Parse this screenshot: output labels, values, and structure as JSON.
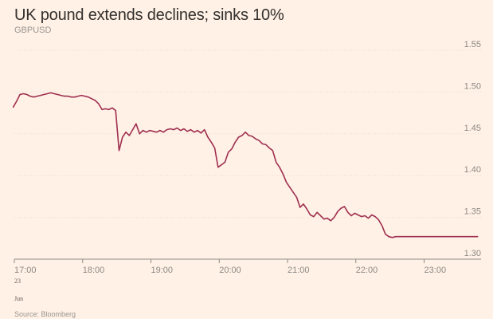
{
  "header": {
    "title": "UK pound extends declines; sinks 10%",
    "subtitle": "GBPUSD"
  },
  "footer": {
    "source": "Source: Bloomberg"
  },
  "colors": {
    "background": "#fff1e5",
    "line": "#9e2f50",
    "grid": "#e9dccf",
    "axis": "#8f8a86",
    "text": "#33302e",
    "muted": "#999591"
  },
  "chart_data": {
    "type": "line",
    "title": "UK pound extends declines; sinks 10%",
    "subtitle": "GBPUSD",
    "xlabel": "",
    "ylabel": "",
    "ylim": [
      1.3,
      1.55
    ],
    "xlim": [
      "17:00",
      "23:50"
    ],
    "grid": true,
    "y_axis_side": "right",
    "yticks": [
      "1.30",
      "1.35",
      "1.40",
      "1.45",
      "1.50",
      "1.55"
    ],
    "xticks": [
      "17:00",
      "18:00",
      "19:00",
      "20:00",
      "21:00",
      "22:00",
      "23:00"
    ],
    "xtick_sublabels": [
      "23",
      "Jun"
    ],
    "series": [
      {
        "x": [
          "16:59",
          "17:02",
          "17:05",
          "17:08",
          "17:11",
          "17:14",
          "17:17",
          "17:20",
          "17:23",
          "17:26",
          "17:29",
          "17:32",
          "17:35",
          "17:38",
          "17:41",
          "17:44",
          "17:47",
          "17:50",
          "17:53",
          "17:56",
          "17:59",
          "18:02",
          "18:05",
          "18:08",
          "18:11",
          "18:14",
          "18:17",
          "18:20",
          "18:23",
          "18:26",
          "18:29",
          "18:32",
          "18:35",
          "18:38",
          "18:41",
          "18:44",
          "18:47",
          "18:50",
          "18:53",
          "18:56",
          "18:59",
          "19:02",
          "19:05",
          "19:08",
          "19:11",
          "19:14",
          "19:17",
          "19:20",
          "19:23",
          "19:26",
          "19:29",
          "19:32",
          "19:35",
          "19:38",
          "19:41",
          "19:44",
          "19:47",
          "19:50",
          "19:53",
          "19:56",
          "19:59",
          "20:02",
          "20:05",
          "20:08",
          "20:11",
          "20:14",
          "20:17",
          "20:20",
          "20:23",
          "20:26",
          "20:29",
          "20:32",
          "20:35",
          "20:38",
          "20:41",
          "20:44",
          "20:47",
          "20:50",
          "20:53",
          "20:56",
          "20:59",
          "21:02",
          "21:05",
          "21:08",
          "21:11",
          "21:14",
          "21:17",
          "21:20",
          "21:23",
          "21:26",
          "21:29",
          "21:32",
          "21:35",
          "21:38",
          "21:41",
          "21:44",
          "21:47",
          "21:50",
          "21:53",
          "21:56",
          "21:59",
          "22:02",
          "22:05",
          "22:08",
          "22:11",
          "22:14",
          "22:17",
          "22:20",
          "22:23",
          "22:26",
          "22:29",
          "22:32",
          "22:35",
          "22:38",
          "22:41",
          "22:44",
          "22:47",
          "22:50",
          "22:53",
          "22:56",
          "22:59",
          "23:02",
          "23:05",
          "23:08",
          "23:11",
          "23:14",
          "23:17",
          "23:20",
          "23:23",
          "23:26",
          "23:29",
          "23:32",
          "23:35",
          "23:38",
          "23:41",
          "23:44",
          "23:47"
        ],
        "values": [
          1.482,
          1.489,
          1.497,
          1.498,
          1.497,
          1.495,
          1.494,
          1.495,
          1.496,
          1.497,
          1.498,
          1.499,
          1.498,
          1.497,
          1.496,
          1.495,
          1.495,
          1.494,
          1.494,
          1.495,
          1.496,
          1.495,
          1.494,
          1.492,
          1.49,
          1.486,
          1.479,
          1.48,
          1.479,
          1.481,
          1.478,
          1.43,
          1.446,
          1.452,
          1.448,
          1.455,
          1.462,
          1.45,
          1.454,
          1.452,
          1.454,
          1.453,
          1.452,
          1.454,
          1.452,
          1.455,
          1.456,
          1.455,
          1.457,
          1.454,
          1.456,
          1.453,
          1.455,
          1.452,
          1.454,
          1.451,
          1.455,
          1.446,
          1.44,
          1.433,
          1.41,
          1.413,
          1.416,
          1.428,
          1.432,
          1.44,
          1.446,
          1.448,
          1.452,
          1.448,
          1.447,
          1.444,
          1.442,
          1.438,
          1.437,
          1.433,
          1.43,
          1.416,
          1.41,
          1.402,
          1.392,
          1.386,
          1.38,
          1.374,
          1.362,
          1.366,
          1.36,
          1.353,
          1.351,
          1.356,
          1.352,
          1.348,
          1.349,
          1.346,
          1.35,
          1.357,
          1.361,
          1.363,
          1.356,
          1.352,
          1.355,
          1.353,
          1.351,
          1.352,
          1.349,
          1.353,
          1.351,
          1.347,
          1.34,
          1.33,
          1.327,
          1.326,
          1.327,
          1.327,
          1.327,
          1.327,
          1.327,
          1.327,
          1.327,
          1.327,
          1.327,
          1.327,
          1.327,
          1.327,
          1.327,
          1.327,
          1.327,
          1.327,
          1.327,
          1.327,
          1.327,
          1.327,
          1.327,
          1.327,
          1.327,
          1.327,
          1.327
        ]
      }
    ]
  }
}
